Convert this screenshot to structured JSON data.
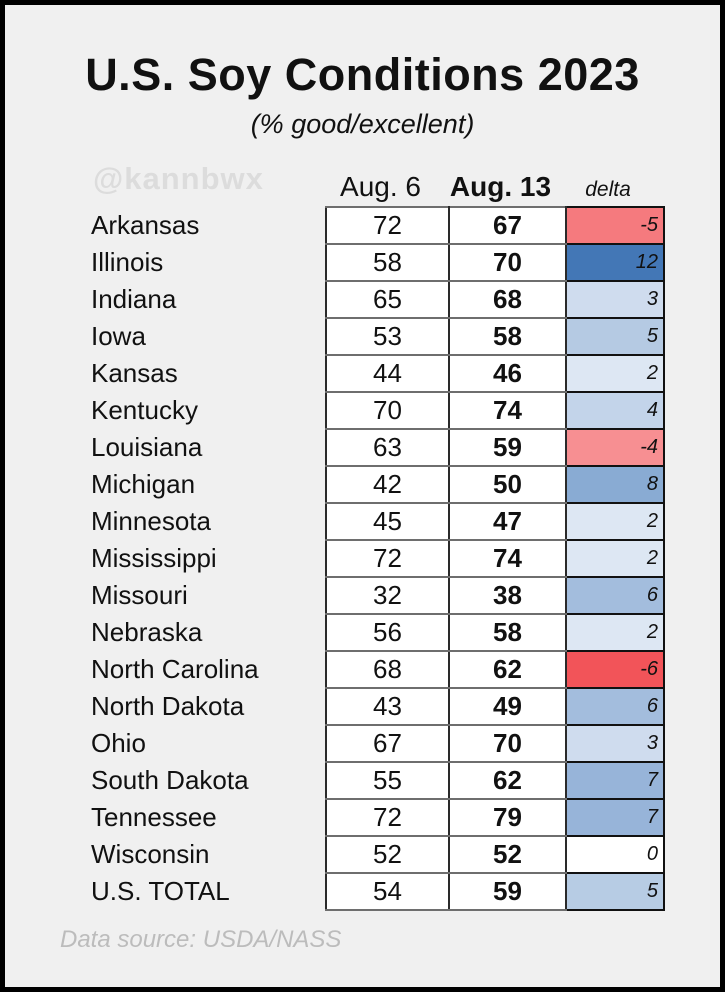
{
  "title": "U.S. Soy Conditions 2023",
  "subtitle": "(% good/excellent)",
  "watermark": "@kannbwx",
  "footer": "Data source: USDA/NASS",
  "colors": {
    "background": "#f0f0f0",
    "frame": "#000000",
    "watermark_text": "#dcdcdc",
    "footer_text": "#bcbcbc",
    "negative_strong": "#F25459",
    "positive_strong": "#4377B6"
  },
  "table": {
    "headers": {
      "aug6": "Aug. 6",
      "aug13": "Aug. 13",
      "delta": "delta"
    },
    "rows": [
      {
        "state": "Arkansas",
        "aug6": "72",
        "aug13": "67",
        "delta": "-5",
        "delta_color": "#F57A7E"
      },
      {
        "state": "Illinois",
        "aug6": "58",
        "aug13": "70",
        "delta": "12",
        "delta_color": "#4377B6"
      },
      {
        "state": "Indiana",
        "aug6": "65",
        "aug13": "68",
        "delta": "3",
        "delta_color": "#CFDCEE"
      },
      {
        "state": "Iowa",
        "aug6": "53",
        "aug13": "58",
        "delta": "5",
        "delta_color": "#B5CAE3"
      },
      {
        "state": "Kansas",
        "aug6": "44",
        "aug13": "46",
        "delta": "2",
        "delta_color": "#DDE7F3"
      },
      {
        "state": "Kentucky",
        "aug6": "70",
        "aug13": "74",
        "delta": "4",
        "delta_color": "#C3D4EA"
      },
      {
        "state": "Louisiana",
        "aug6": "63",
        "aug13": "59",
        "delta": "-4",
        "delta_color": "#F78F92"
      },
      {
        "state": "Michigan",
        "aug6": "42",
        "aug13": "50",
        "delta": "8",
        "delta_color": "#89ABD3"
      },
      {
        "state": "Minnesota",
        "aug6": "45",
        "aug13": "47",
        "delta": "2",
        "delta_color": "#DDE7F3"
      },
      {
        "state": "Mississippi",
        "aug6": "72",
        "aug13": "74",
        "delta": "2",
        "delta_color": "#DDE7F3"
      },
      {
        "state": "Missouri",
        "aug6": "32",
        "aug13": "38",
        "delta": "6",
        "delta_color": "#A3BDDD"
      },
      {
        "state": "Nebraska",
        "aug6": "56",
        "aug13": "58",
        "delta": "2",
        "delta_color": "#DDE7F3"
      },
      {
        "state": "North Carolina",
        "aug6": "68",
        "aug13": "62",
        "delta": "-6",
        "delta_color": "#F25459"
      },
      {
        "state": "North Dakota",
        "aug6": "43",
        "aug13": "49",
        "delta": "6",
        "delta_color": "#A3BDDD"
      },
      {
        "state": "Ohio",
        "aug6": "67",
        "aug13": "70",
        "delta": "3",
        "delta_color": "#CFDCEE"
      },
      {
        "state": "South Dakota",
        "aug6": "55",
        "aug13": "62",
        "delta": "7",
        "delta_color": "#97B4D9"
      },
      {
        "state": "Tennessee",
        "aug6": "72",
        "aug13": "79",
        "delta": "7",
        "delta_color": "#97B4D9"
      },
      {
        "state": "Wisconsin",
        "aug6": "52",
        "aug13": "52",
        "delta": "0",
        "delta_color": "#FFFFFF"
      },
      {
        "state": "U.S. TOTAL",
        "aug6": "54",
        "aug13": "59",
        "delta": "5",
        "delta_color": "#B7CCE4"
      }
    ]
  },
  "chart_data": {
    "type": "table",
    "title": "U.S. Soy Conditions 2023",
    "subtitle": "(% good/excellent)",
    "categories": [
      "Arkansas",
      "Illinois",
      "Indiana",
      "Iowa",
      "Kansas",
      "Kentucky",
      "Louisiana",
      "Michigan",
      "Minnesota",
      "Mississippi",
      "Missouri",
      "Nebraska",
      "North Carolina",
      "North Dakota",
      "Ohio",
      "South Dakota",
      "Tennessee",
      "Wisconsin",
      "U.S. TOTAL"
    ],
    "series": [
      {
        "name": "Aug. 6",
        "values": [
          72,
          58,
          65,
          53,
          44,
          70,
          63,
          42,
          45,
          72,
          32,
          56,
          68,
          43,
          67,
          55,
          72,
          52,
          54
        ]
      },
      {
        "name": "Aug. 13",
        "values": [
          67,
          70,
          68,
          58,
          46,
          74,
          59,
          50,
          47,
          74,
          38,
          58,
          62,
          49,
          70,
          62,
          79,
          52,
          59
        ]
      },
      {
        "name": "delta",
        "values": [
          -5,
          12,
          3,
          5,
          2,
          4,
          -4,
          8,
          2,
          2,
          6,
          2,
          -6,
          6,
          3,
          7,
          7,
          0,
          5
        ]
      }
    ],
    "legend_position": "none",
    "notes": "delta column shaded on diverging red-blue scale: red = week-over-week decline, blue = improvement, white = no change",
    "source": "Data source: USDA/NASS"
  }
}
